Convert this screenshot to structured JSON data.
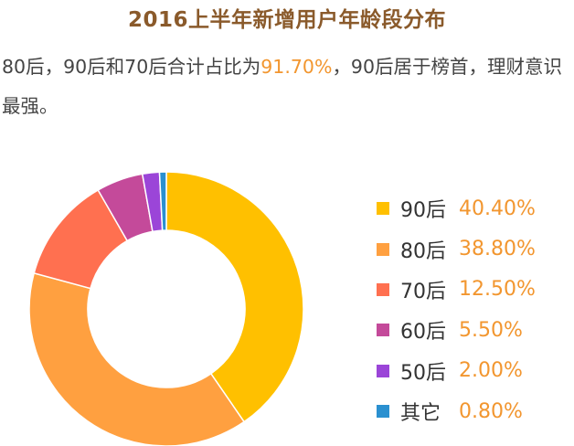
{
  "title": "2016上半年新增用户年龄段分布",
  "description": {
    "part1": "80后，90后和70后合计占比为",
    "highlight": "91.70%",
    "part2": "，90后居于榜首，理财意识最强。"
  },
  "colors": {
    "title": "#8a5a2b",
    "highlight": "#f2962f",
    "value_text": "#f2962f"
  },
  "chart_data": {
    "type": "pie",
    "variant": "donut",
    "categories": [
      "90后",
      "80后",
      "70后",
      "60后",
      "50后",
      "其它"
    ],
    "values": [
      40.4,
      38.8,
      12.5,
      5.5,
      2.0,
      0.8
    ],
    "value_labels": [
      "40.40%",
      "38.80%",
      "12.50%",
      "5.50%",
      "2.00%",
      "0.80%"
    ],
    "colors": [
      "#ffc000",
      "#ffa040",
      "#ff7050",
      "#c44a9a",
      "#9b45d8",
      "#2a90d0"
    ],
    "legend_position": "right"
  }
}
